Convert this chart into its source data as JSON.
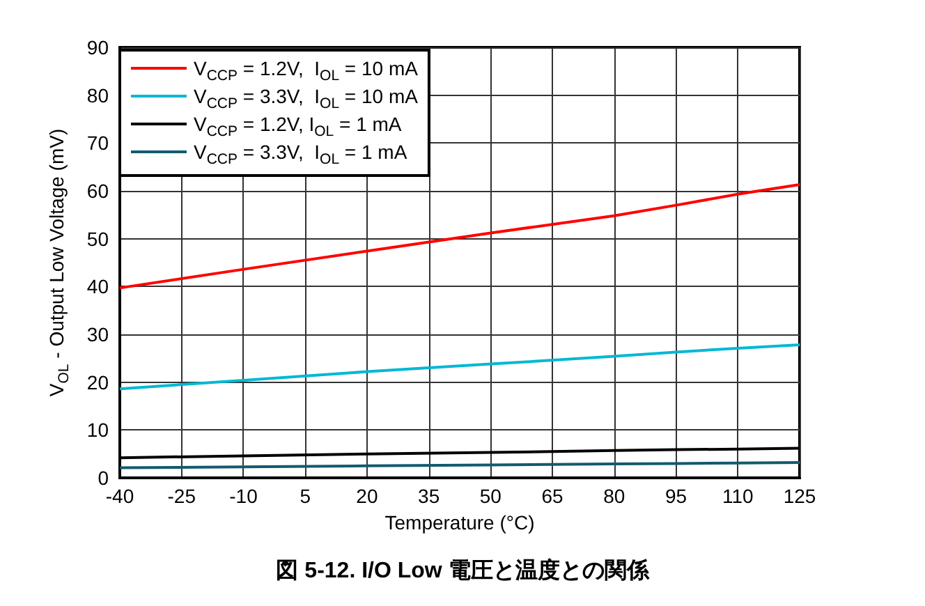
{
  "chart_data": {
    "type": "line",
    "title": "図 5-12. I/O Low 電圧と温度との関係",
    "xlabel": "Temperature (°C)",
    "ylabel": "V$_{OL}$ - Output Low Voltage (mV)",
    "x": [
      -40,
      -10,
      20,
      50,
      80,
      95,
      110,
      125
    ],
    "series": [
      {
        "name": "V$_{CCP}$ = 1.2V,  I$_{OL}$ = 10 mA",
        "color": "#ff0000",
        "values": [
          39.7,
          43.6,
          47.4,
          51.2,
          54.8,
          57.0,
          59.3,
          61.3
        ]
      },
      {
        "name": "V$_{CCP}$ = 3.3V,  I$_{OL}$ = 10 mA",
        "color": "#00b8d4",
        "values": [
          18.6,
          20.4,
          22.2,
          23.8,
          25.4,
          26.3,
          27.1,
          27.8
        ]
      },
      {
        "name": "V$_{CCP}$ = 1.2V, I$_{OL}$ = 1 mA",
        "color": "#000000",
        "values": [
          4.2,
          4.6,
          5.0,
          5.3,
          5.7,
          5.9,
          6.0,
          6.2
        ]
      },
      {
        "name": "V$_{CCP}$ = 3.3V,  I$_{OL}$ = 1 mA",
        "color": "#135a6e",
        "values": [
          2.1,
          2.3,
          2.5,
          2.7,
          2.9,
          3.0,
          3.1,
          3.2
        ]
      }
    ],
    "xlim": [
      -40,
      125
    ],
    "xticks": [
      -40,
      -25,
      -10,
      5,
      20,
      35,
      50,
      65,
      80,
      95,
      110,
      125
    ],
    "ylim": [
      0,
      90
    ],
    "yticks": [
      0,
      10,
      20,
      30,
      40,
      50,
      60,
      70,
      80,
      90
    ],
    "grid": true,
    "legend": "top left",
    "marker": "none",
    "line_style": "solid"
  }
}
